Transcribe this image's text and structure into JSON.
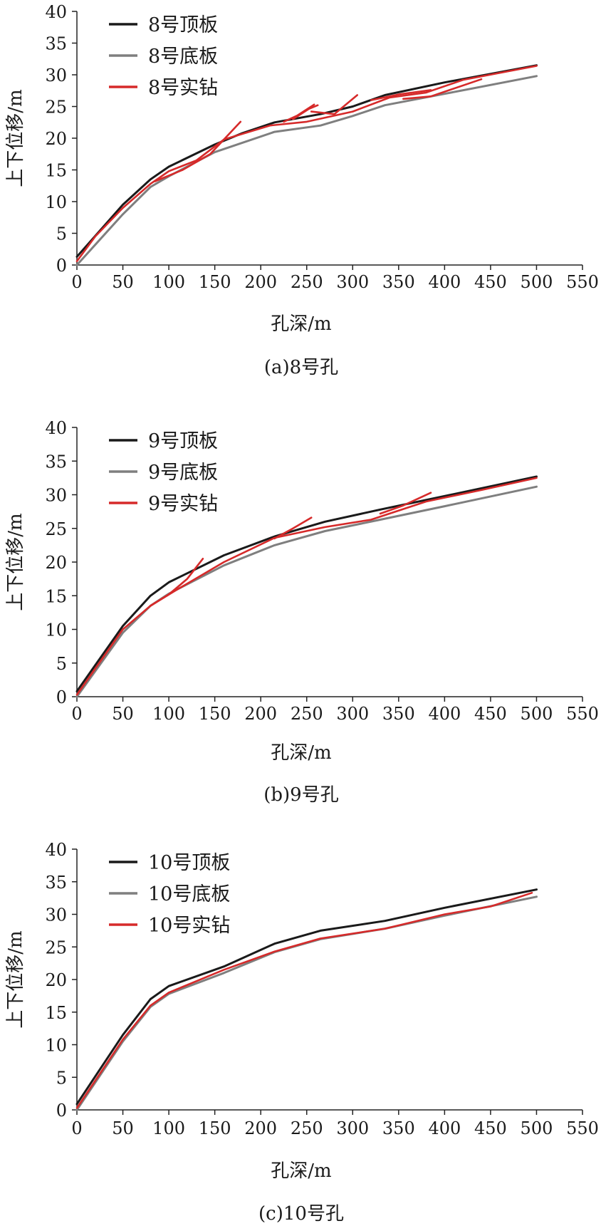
{
  "chart_data": [
    {
      "type": "line",
      "caption": "(a)8号孔",
      "xlabel": "孔深/m",
      "ylabel": "上下位移/m",
      "xlim": [
        0,
        550
      ],
      "ylim": [
        0,
        40
      ],
      "xticks": [
        0,
        50,
        100,
        150,
        200,
        250,
        300,
        350,
        400,
        450,
        500,
        550
      ],
      "yticks": [
        0,
        5,
        10,
        15,
        20,
        25,
        30,
        35,
        40
      ],
      "legend_position": "top-left",
      "series": [
        {
          "name": "8号顶板",
          "color": "#1a1a1a",
          "points": [
            [
              0,
              1.3
            ],
            [
              50,
              9.5
            ],
            [
              80,
              13.5
            ],
            [
              100,
              15.5
            ],
            [
              150,
              19.0
            ],
            [
              180,
              20.8
            ],
            [
              215,
              22.5
            ],
            [
              265,
              23.8
            ],
            [
              300,
              25.0
            ],
            [
              335,
              26.8
            ],
            [
              400,
              28.8
            ],
            [
              500,
              31.5
            ]
          ]
        },
        {
          "name": "8号底板",
          "color": "#7f7f7f",
          "points": [
            [
              0,
              0
            ],
            [
              50,
              8.0
            ],
            [
              80,
              12.3
            ],
            [
              100,
              14.0
            ],
            [
              150,
              17.8
            ],
            [
              215,
              21.0
            ],
            [
              265,
              22.0
            ],
            [
              300,
              23.5
            ],
            [
              335,
              25.2
            ],
            [
              400,
              27.0
            ],
            [
              500,
              29.8
            ]
          ]
        },
        {
          "name": "8号实钻",
          "color": "#d62a2a",
          "points": [
            [
              0,
              0.6
            ],
            [
              20,
              4.5
            ],
            [
              50,
              9.0
            ],
            [
              80,
              12.8
            ],
            [
              100,
              14.8
            ],
            [
              130,
              16.5
            ],
            [
              160,
              19.8
            ],
            [
              210,
              22.0
            ],
            [
              250,
              22.6
            ],
            [
              300,
              24.2
            ],
            [
              340,
              26.4
            ],
            [
              380,
              27.2
            ],
            [
              420,
              29.2
            ],
            [
              500,
              31.4
            ]
          ]
        },
        {
          "name": "",
          "color": "#d62a2a",
          "points": [
            [
              85,
              13.2
            ],
            [
              115,
              15.0
            ],
            [
              145,
              17.5
            ],
            [
              178,
              22.6
            ]
          ]
        },
        {
          "name": "",
          "color": "#d62a2a",
          "points": [
            [
              225,
              22.6
            ],
            [
              240,
              23.6
            ],
            [
              258,
              25.3
            ]
          ]
        },
        {
          "name": "",
          "color": "#d62a2a",
          "points": [
            [
              235,
              23.0
            ],
            [
              252,
              24.6
            ],
            [
              262,
              25.2
            ]
          ]
        },
        {
          "name": "",
          "color": "#d62a2a",
          "points": [
            [
              255,
              24.2
            ],
            [
              280,
              23.8
            ],
            [
              305,
              26.8
            ]
          ]
        },
        {
          "name": "",
          "color": "#d62a2a",
          "points": [
            [
              320,
              26.0
            ],
            [
              350,
              26.9
            ],
            [
              385,
              27.6
            ]
          ]
        },
        {
          "name": "",
          "color": "#d62a2a",
          "points": [
            [
              355,
              26.2
            ],
            [
              385,
              26.6
            ],
            [
              440,
              29.3
            ]
          ]
        }
      ]
    },
    {
      "type": "line",
      "caption": "(b)9号孔",
      "xlabel": "孔深/m",
      "ylabel": "上下位移/m",
      "xlim": [
        0,
        550
      ],
      "ylim": [
        0,
        40
      ],
      "xticks": [
        0,
        50,
        100,
        150,
        200,
        250,
        300,
        350,
        400,
        450,
        500,
        550
      ],
      "yticks": [
        0,
        5,
        10,
        15,
        20,
        25,
        30,
        35,
        40
      ],
      "legend_position": "top-left",
      "series": [
        {
          "name": "9号顶板",
          "color": "#1a1a1a",
          "points": [
            [
              0,
              0.8
            ],
            [
              50,
              10.5
            ],
            [
              80,
              15.0
            ],
            [
              100,
              17.0
            ],
            [
              160,
              21.0
            ],
            [
              215,
              23.8
            ],
            [
              270,
              26.0
            ],
            [
              330,
              27.8
            ],
            [
              400,
              29.8
            ],
            [
              500,
              32.7
            ]
          ]
        },
        {
          "name": "9号底板",
          "color": "#7f7f7f",
          "points": [
            [
              0,
              0
            ],
            [
              50,
              9.5
            ],
            [
              80,
              13.5
            ],
            [
              100,
              15.3
            ],
            [
              160,
              19.5
            ],
            [
              215,
              22.5
            ],
            [
              270,
              24.6
            ],
            [
              330,
              26.3
            ],
            [
              400,
              28.3
            ],
            [
              500,
              31.2
            ]
          ]
        },
        {
          "name": "9号实钻",
          "color": "#d62a2a",
          "points": [
            [
              0,
              0.3
            ],
            [
              50,
              10.0
            ],
            [
              80,
              13.5
            ],
            [
              110,
              16.0
            ],
            [
              160,
              20.0
            ],
            [
              215,
              23.6
            ],
            [
              270,
              25.2
            ],
            [
              320,
              26.3
            ],
            [
              380,
              29.0
            ],
            [
              440,
              30.7
            ],
            [
              500,
              32.5
            ]
          ]
        },
        {
          "name": "",
          "color": "#d62a2a",
          "points": [
            [
              80,
              13.5
            ],
            [
              100,
              15.2
            ],
            [
              120,
              17.5
            ],
            [
              137,
              20.5
            ]
          ]
        },
        {
          "name": "",
          "color": "#d62a2a",
          "points": [
            [
              215,
              23.5
            ],
            [
              235,
              25.0
            ],
            [
              255,
              26.6
            ]
          ]
        },
        {
          "name": "",
          "color": "#d62a2a",
          "points": [
            [
              330,
              27.2
            ],
            [
              355,
              28.4
            ],
            [
              385,
              30.3
            ]
          ]
        }
      ]
    },
    {
      "type": "line",
      "caption": "(c)10号孔",
      "xlabel": "孔深/m",
      "ylabel": "上下位移/m",
      "xlim": [
        0,
        550
      ],
      "ylim": [
        0,
        40
      ],
      "xticks": [
        0,
        50,
        100,
        150,
        200,
        250,
        300,
        350,
        400,
        450,
        500,
        550
      ],
      "yticks": [
        0,
        5,
        10,
        15,
        20,
        25,
        30,
        35,
        40
      ],
      "legend_position": "top-left",
      "series": [
        {
          "name": "10号顶板",
          "color": "#1a1a1a",
          "points": [
            [
              0,
              0.9
            ],
            [
              50,
              11.5
            ],
            [
              80,
              17.0
            ],
            [
              100,
              19.0
            ],
            [
              160,
              22.0
            ],
            [
              215,
              25.5
            ],
            [
              265,
              27.5
            ],
            [
              335,
              29.0
            ],
            [
              400,
              31.0
            ],
            [
              500,
              33.8
            ]
          ]
        },
        {
          "name": "10号底板",
          "color": "#7f7f7f",
          "points": [
            [
              0,
              0
            ],
            [
              50,
              10.5
            ],
            [
              80,
              15.8
            ],
            [
              100,
              17.8
            ],
            [
              160,
              21.0
            ],
            [
              215,
              24.2
            ],
            [
              265,
              26.2
            ],
            [
              335,
              27.8
            ],
            [
              400,
              29.8
            ],
            [
              500,
              32.7
            ]
          ]
        },
        {
          "name": "10号实钻",
          "color": "#d62a2a",
          "points": [
            [
              0,
              0.3
            ],
            [
              50,
              10.8
            ],
            [
              80,
              16.0
            ],
            [
              100,
              18.0
            ],
            [
              160,
              21.5
            ],
            [
              215,
              24.3
            ],
            [
              265,
              26.3
            ],
            [
              335,
              27.8
            ],
            [
              400,
              30.0
            ],
            [
              450,
              31.2
            ],
            [
              495,
              33.3
            ]
          ]
        }
      ]
    }
  ]
}
